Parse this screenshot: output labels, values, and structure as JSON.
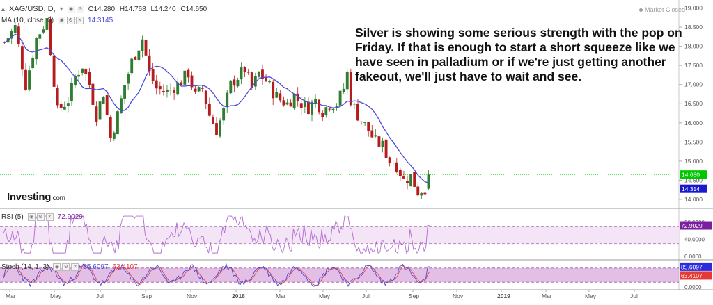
{
  "header": {
    "symbol": "XAG/USD, D,",
    "open": "O14.280",
    "high": "H14.768",
    "low": "L14.240",
    "close": "C14.650",
    "ma_label": "MA (10, close, 0)",
    "ma_value": "14.3145",
    "market_status": "Market Closed"
  },
  "annotation": "Silver is showing some serious strength with the pop on Friday. If that is enough to start a short squeeze like we have seen in palladium or if we're just getting another fakeout, we'll just have to wait and see.",
  "logo": {
    "name": "Investing",
    "suffix": ".com"
  },
  "colors": {
    "up": "#2e7d32",
    "down": "#b71c1c",
    "ma": "#4a4ad8",
    "rsi_line": "#b36bd1",
    "rsi_band": "#f3e5f5",
    "stoch_k": "#4a4ad8",
    "stoch_d": "#e53935",
    "stoch_band": "#d9a9de",
    "price_tag": "#00c800",
    "ma_tag": "#1a1acc",
    "rsi_tag": "#7b1fa2",
    "stoch_k_tag": "#2a2adf",
    "stoch_d_tag": "#e53935"
  },
  "chart_data": {
    "type": "candlestick",
    "price_axis": {
      "ticks": [
        "19.000",
        "18.500",
        "18.000",
        "17.500",
        "17.000",
        "16.500",
        "16.000",
        "15.500",
        "15.000",
        "14.500",
        "14.000"
      ],
      "ylim": [
        13.8,
        19.1
      ],
      "last_price_label": "14.650",
      "ma_label": "14.314"
    },
    "time_axis": {
      "labels": [
        "Mar",
        "May",
        "Jul",
        "Sep",
        "Nov",
        "2018",
        "Mar",
        "May",
        "Jul",
        "Sep",
        "Nov",
        "2019",
        "Mar",
        "May",
        "Jul"
      ]
    },
    "price_path": [
      [
        0,
        18.1
      ],
      [
        3,
        18.5
      ],
      [
        6,
        17.0
      ],
      [
        9,
        18.2
      ],
      [
        12,
        18.7
      ],
      [
        15,
        16.3
      ],
      [
        18,
        16.6
      ],
      [
        20,
        17.2
      ],
      [
        22,
        17.5
      ],
      [
        24,
        17.0
      ],
      [
        26,
        16.2
      ],
      [
        28,
        16.8
      ],
      [
        30,
        15.6
      ],
      [
        32,
        16.2
      ],
      [
        34,
        17.0
      ],
      [
        36,
        17.6
      ],
      [
        39,
        18.2
      ],
      [
        41,
        17.3
      ],
      [
        43,
        16.9
      ],
      [
        46,
        16.8
      ],
      [
        49,
        17.0
      ],
      [
        52,
        17.3
      ],
      [
        54,
        16.7
      ],
      [
        56,
        16.9
      ],
      [
        58,
        16.2
      ],
      [
        60,
        15.8
      ],
      [
        62,
        16.3
      ],
      [
        64,
        17.0
      ],
      [
        66,
        17.2
      ],
      [
        68,
        17.4
      ],
      [
        70,
        16.9
      ],
      [
        72,
        17.3
      ],
      [
        74,
        17.1
      ],
      [
        76,
        16.8
      ],
      [
        78,
        16.6
      ],
      [
        80,
        16.5
      ],
      [
        82,
        16.7
      ],
      [
        84,
        16.5
      ],
      [
        86,
        16.4
      ],
      [
        88,
        16.6
      ],
      [
        90,
        16.3
      ],
      [
        92,
        16.5
      ],
      [
        94,
        16.5
      ],
      [
        96,
        16.9
      ],
      [
        97,
        17.3
      ],
      [
        98,
        16.6
      ],
      [
        100,
        16.2
      ],
      [
        103,
        15.8
      ],
      [
        105,
        15.5
      ],
      [
        107,
        15.4
      ],
      [
        109,
        15.0
      ],
      [
        111,
        14.9
      ],
      [
        113,
        14.5
      ],
      [
        115,
        14.6
      ],
      [
        117,
        14.2
      ],
      [
        119,
        14.3
      ],
      [
        120,
        14.65
      ]
    ],
    "n_bars": 121,
    "rsi": {
      "label": "RSI (5)",
      "value": "72.9029",
      "ticks": [
        "80.0000",
        "40.0000",
        "0.0000"
      ],
      "ylim": [
        0,
        100
      ],
      "band": [
        30,
        70
      ]
    },
    "stoch": {
      "label": "Stoch (14, 1, 3)",
      "k_value": "85.6097",
      "d_value": "63.4107",
      "ticks": [
        "80.0000",
        "0.0000"
      ],
      "ylim": [
        0,
        100
      ],
      "band": [
        20,
        80
      ]
    }
  }
}
